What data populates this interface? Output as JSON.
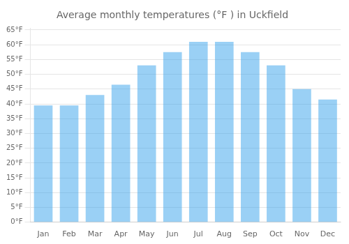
{
  "chart_data": {
    "type": "bar",
    "title": "Average monthly temperatures (°F ) in Uckfield",
    "categories": [
      "Jan",
      "Feb",
      "Mar",
      "Apr",
      "May",
      "Jun",
      "Jul",
      "Aug",
      "Sep",
      "Oct",
      "Nov",
      "Dec"
    ],
    "values": [
      39.5,
      39.5,
      43.0,
      46.5,
      53.0,
      57.5,
      61.0,
      61.0,
      57.5,
      53.0,
      45.0,
      41.5
    ],
    "ylim": [
      0,
      65.5
    ],
    "yticks": [
      {
        "value": 0,
        "label": "0°F"
      },
      {
        "value": 5,
        "label": "5°F"
      },
      {
        "value": 10,
        "label": "10°F"
      },
      {
        "value": 15,
        "label": "15°F"
      },
      {
        "value": 20,
        "label": "20°F"
      },
      {
        "value": 25,
        "label": "25°F"
      },
      {
        "value": 30,
        "label": "30°F"
      },
      {
        "value": 35,
        "label": "35°F"
      },
      {
        "value": 40,
        "label": "40°F"
      },
      {
        "value": 45,
        "label": "45°F"
      },
      {
        "value": 50,
        "label": "50°F"
      },
      {
        "value": 55,
        "label": "55°F"
      },
      {
        "value": 60,
        "label": "60°F"
      },
      {
        "value": 65,
        "label": "65°F"
      }
    ],
    "grid": true
  }
}
